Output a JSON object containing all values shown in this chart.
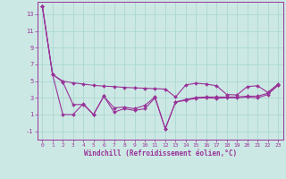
{
  "xlabel": "Windchill (Refroidissement éolien,°C)",
  "background_color": "#cce8e4",
  "grid_color": "#aad8d2",
  "line_color": "#993399",
  "x": [
    0,
    1,
    2,
    3,
    4,
    5,
    6,
    7,
    8,
    9,
    10,
    11,
    12,
    13,
    14,
    15,
    16,
    17,
    18,
    19,
    20,
    21,
    22,
    23
  ],
  "y_upper": [
    14.0,
    5.8,
    5.0,
    4.8,
    4.65,
    4.5,
    4.4,
    4.35,
    4.25,
    4.2,
    4.15,
    4.1,
    4.05,
    3.1,
    4.55,
    4.75,
    4.65,
    4.45,
    3.4,
    3.35,
    4.35,
    4.45,
    3.65,
    4.65
  ],
  "y_mid": [
    14.0,
    5.8,
    4.9,
    2.2,
    2.2,
    1.0,
    3.2,
    1.8,
    1.9,
    1.7,
    2.1,
    3.1,
    -0.7,
    2.5,
    2.8,
    3.05,
    3.1,
    3.1,
    3.1,
    3.1,
    3.2,
    3.2,
    3.55,
    4.55
  ],
  "y_lower": [
    14.0,
    5.8,
    1.0,
    1.0,
    2.3,
    1.0,
    3.2,
    1.3,
    1.7,
    1.5,
    1.7,
    3.0,
    -0.7,
    2.5,
    2.7,
    2.95,
    3.0,
    2.95,
    3.0,
    3.0,
    3.1,
    3.0,
    3.4,
    4.5
  ],
  "ylim": [
    -2,
    14.5
  ],
  "yticks": [
    -1,
    1,
    3,
    5,
    7,
    9,
    11,
    13
  ],
  "xlim": [
    -0.5,
    23.5
  ],
  "xticks": [
    0,
    1,
    2,
    3,
    4,
    5,
    6,
    7,
    8,
    9,
    10,
    11,
    12,
    13,
    14,
    15,
    16,
    17,
    18,
    19,
    20,
    21,
    22,
    23
  ]
}
